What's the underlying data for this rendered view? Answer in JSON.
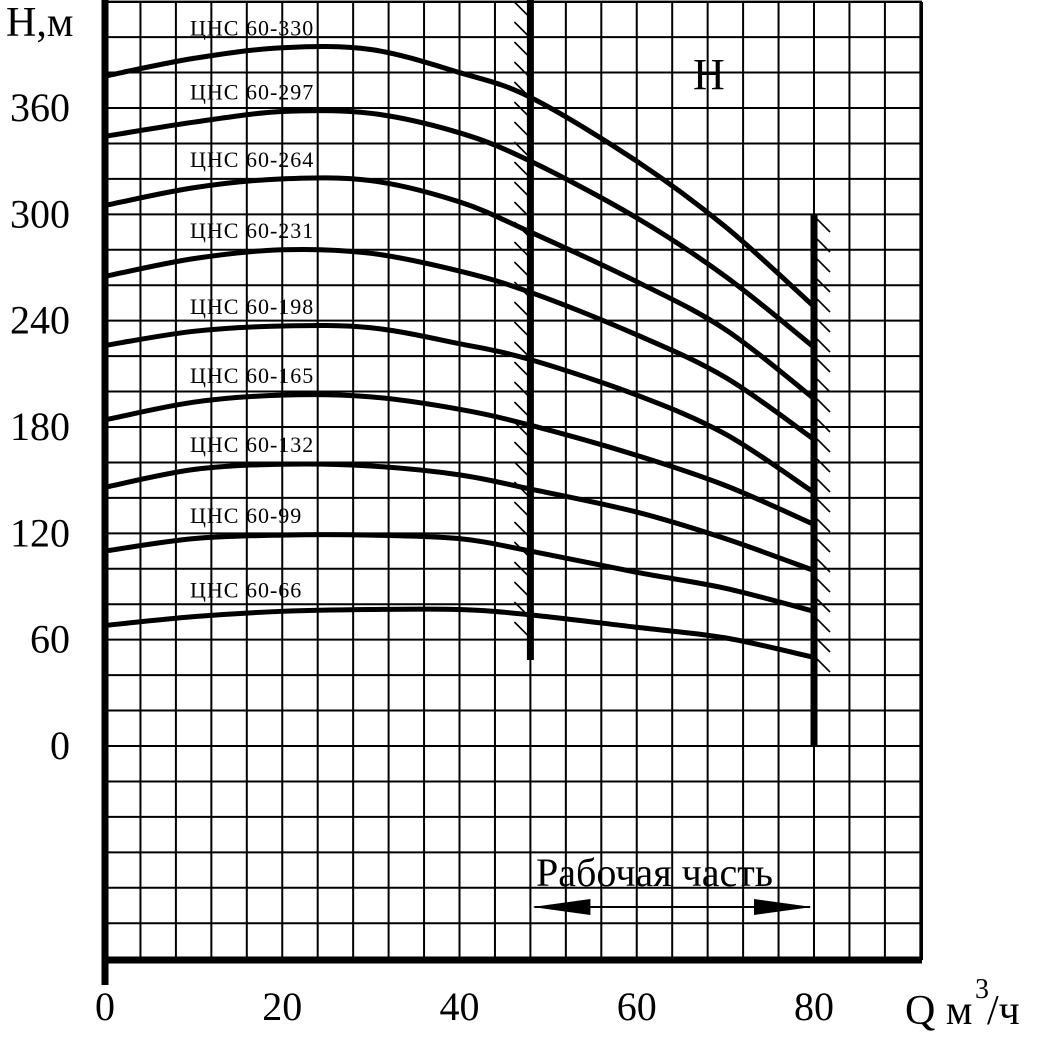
{
  "chart_data": {
    "type": "line",
    "title": "",
    "xlabel": "Q м",
    "xlabel_sup": "3",
    "xlabel_suffix": "/ч",
    "ylabel": "H,м",
    "panel_label": "H",
    "xlim": [
      0,
      92
    ],
    "ylim": [
      -240,
      420
    ],
    "x_ticks": [
      0,
      20,
      40,
      60,
      80
    ],
    "y_ticks": [
      0,
      60,
      120,
      180,
      240,
      300,
      360
    ],
    "grid": true,
    "working_zone": {
      "x_start": 48,
      "x_end": 80,
      "label": "Рабочая часть"
    },
    "series": [
      {
        "name": "ЦНС 60-330",
        "x": [
          0,
          10,
          20,
          30,
          40,
          48,
          60,
          70,
          80
        ],
        "y": [
          378,
          388,
          394,
          393,
          380,
          366,
          330,
          293,
          248
        ]
      },
      {
        "name": "ЦНС 60-297",
        "x": [
          0,
          10,
          20,
          30,
          40,
          48,
          60,
          70,
          80
        ],
        "y": [
          344,
          352,
          358,
          357,
          346,
          330,
          298,
          265,
          225
        ]
      },
      {
        "name": "ЦНС 60-264",
        "x": [
          0,
          10,
          20,
          30,
          40,
          48,
          60,
          70,
          80
        ],
        "y": [
          305,
          315,
          320,
          319,
          307,
          290,
          262,
          235,
          196
        ]
      },
      {
        "name": "ЦНС 60-231",
        "x": [
          0,
          10,
          20,
          30,
          40,
          48,
          60,
          70,
          80
        ],
        "y": [
          265,
          275,
          280,
          278,
          268,
          256,
          232,
          208,
          173
        ]
      },
      {
        "name": "ЦНС 60-198",
        "x": [
          0,
          10,
          20,
          30,
          40,
          48,
          60,
          70,
          80
        ],
        "y": [
          226,
          234,
          237,
          236,
          227,
          218,
          198,
          176,
          143
        ]
      },
      {
        "name": "ЦНС 60-165",
        "x": [
          0,
          10,
          20,
          30,
          40,
          48,
          60,
          70,
          80
        ],
        "y": [
          184,
          194,
          198,
          197,
          190,
          181,
          164,
          147,
          125
        ]
      },
      {
        "name": "ЦНС 60-132",
        "x": [
          0,
          10,
          20,
          30,
          40,
          48,
          60,
          70,
          80
        ],
        "y": [
          146,
          156,
          159,
          158,
          153,
          145,
          132,
          117,
          99
        ]
      },
      {
        "name": "ЦНС 60-99",
        "x": [
          0,
          10,
          20,
          30,
          40,
          48,
          60,
          70,
          80
        ],
        "y": [
          110,
          117,
          119,
          119,
          117,
          110,
          98,
          89,
          76
        ]
      },
      {
        "name": "ЦНС 60-66",
        "x": [
          0,
          10,
          20,
          30,
          40,
          48,
          60,
          70,
          80
        ],
        "y": [
          68,
          73,
          76,
          77,
          77,
          74,
          67,
          61,
          50
        ]
      }
    ]
  }
}
